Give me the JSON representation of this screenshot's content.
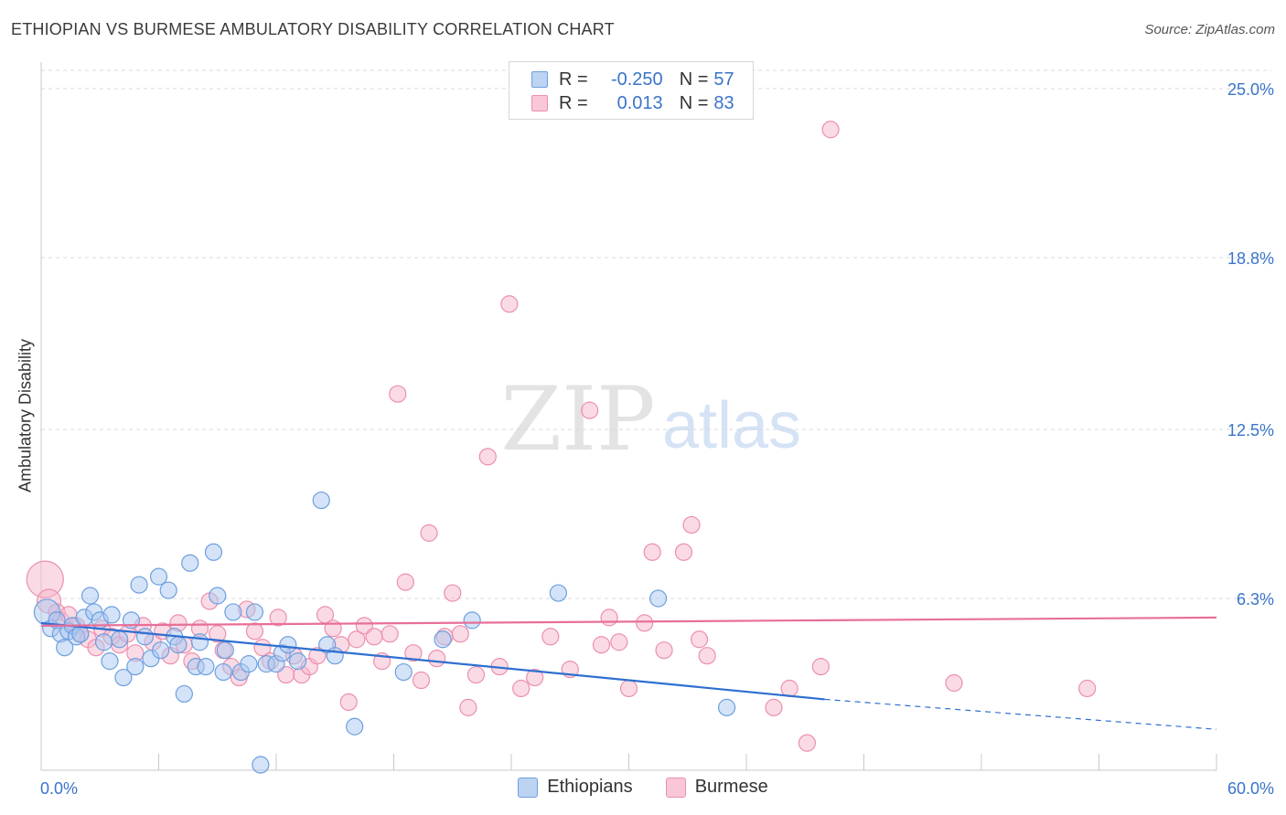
{
  "title": "ETHIOPIAN VS BURMESE AMBULATORY DISABILITY CORRELATION CHART",
  "source": "Source: ZipAtlas.com",
  "watermark": {
    "zip": "ZIP",
    "atlas": "atlas"
  },
  "colors": {
    "blue_fill": "#a9c8f0",
    "blue_stroke": "#6d9fe0",
    "blue_line": "#2e6fd1",
    "pink_fill": "#f6b8cc",
    "pink_stroke": "#ec8fae",
    "pink_line": "#e86f99",
    "grid": "#d8d8d8",
    "axis_text": "#3a74c9"
  },
  "legend": {
    "rows": [
      {
        "r_label": "R =",
        "r_value": "-0.250",
        "n_label": "N =",
        "n_value": "57"
      },
      {
        "r_label": "R =",
        "r_value": "0.013",
        "n_label": "N =",
        "n_value": "83"
      }
    ]
  },
  "chart_data": {
    "type": "scatter",
    "xlabel": "",
    "ylabel": "Ambulatory Disability",
    "xlim": [
      0,
      60
    ],
    "ylim": [
      0,
      25.0
    ],
    "x_tick_labels": [
      "0.0%",
      "60.0%"
    ],
    "y_tick_labels": [
      "6.3%",
      "12.5%",
      "18.8%",
      "25.0%"
    ],
    "y_ticks": [
      6.3,
      12.5,
      18.8,
      25.0
    ],
    "grid": true,
    "series": [
      {
        "name": "Ethiopians",
        "color": "blue",
        "trend": {
          "x0": 0,
          "y0": 5.4,
          "x1": 40,
          "y1": 2.6,
          "dashed_to_x": 60,
          "dashed_to_y": 1.5
        },
        "points": [
          [
            0.3,
            5.8
          ],
          [
            0.5,
            5.2
          ],
          [
            0.8,
            5.5
          ],
          [
            1.0,
            5.0
          ],
          [
            1.2,
            4.5
          ],
          [
            1.4,
            5.1
          ],
          [
            1.6,
            5.3
          ],
          [
            1.8,
            4.9
          ],
          [
            2.0,
            5.0
          ],
          [
            2.2,
            5.6
          ],
          [
            2.5,
            6.4
          ],
          [
            2.7,
            5.8
          ],
          [
            3.0,
            5.5
          ],
          [
            3.2,
            4.7
          ],
          [
            3.5,
            4.0
          ],
          [
            3.6,
            5.7
          ],
          [
            4.0,
            4.8
          ],
          [
            4.2,
            3.4
          ],
          [
            4.6,
            5.5
          ],
          [
            4.8,
            3.8
          ],
          [
            5.0,
            6.8
          ],
          [
            5.3,
            4.9
          ],
          [
            5.6,
            4.1
          ],
          [
            6.0,
            7.1
          ],
          [
            6.1,
            4.4
          ],
          [
            6.5,
            6.6
          ],
          [
            6.8,
            4.9
          ],
          [
            7.0,
            4.6
          ],
          [
            7.3,
            2.8
          ],
          [
            7.6,
            7.6
          ],
          [
            7.9,
            3.8
          ],
          [
            8.1,
            4.7
          ],
          [
            8.4,
            3.8
          ],
          [
            8.8,
            8.0
          ],
          [
            9.0,
            6.4
          ],
          [
            9.3,
            3.6
          ],
          [
            9.4,
            4.4
          ],
          [
            9.8,
            5.8
          ],
          [
            10.2,
            3.6
          ],
          [
            10.6,
            3.9
          ],
          [
            10.9,
            5.8
          ],
          [
            11.2,
            0.2
          ],
          [
            11.5,
            3.9
          ],
          [
            12.0,
            3.9
          ],
          [
            12.3,
            4.3
          ],
          [
            12.6,
            4.6
          ],
          [
            13.1,
            4.0
          ],
          [
            14.3,
            9.9
          ],
          [
            14.6,
            4.6
          ],
          [
            15.0,
            4.2
          ],
          [
            16.0,
            1.6
          ],
          [
            18.5,
            3.6
          ],
          [
            20.5,
            4.8
          ],
          [
            22.0,
            5.5
          ],
          [
            26.4,
            6.5
          ],
          [
            31.5,
            6.3
          ],
          [
            35.0,
            2.3
          ]
        ]
      },
      {
        "name": "Burmese",
        "color": "pink",
        "trend": {
          "x0": 0,
          "y0": 5.3,
          "x1": 60,
          "y1": 5.6
        },
        "points": [
          [
            0.2,
            7.0
          ],
          [
            0.4,
            6.2
          ],
          [
            0.8,
            5.8
          ],
          [
            1.0,
            5.5
          ],
          [
            1.4,
            5.7
          ],
          [
            1.8,
            5.3
          ],
          [
            2.0,
            5.0
          ],
          [
            2.4,
            4.8
          ],
          [
            2.8,
            4.5
          ],
          [
            3.1,
            5.2
          ],
          [
            3.6,
            4.9
          ],
          [
            4.0,
            4.6
          ],
          [
            4.4,
            5.0
          ],
          [
            4.8,
            4.3
          ],
          [
            5.2,
            5.3
          ],
          [
            5.7,
            4.7
          ],
          [
            6.2,
            5.1
          ],
          [
            6.6,
            4.2
          ],
          [
            7.0,
            5.4
          ],
          [
            7.3,
            4.6
          ],
          [
            7.7,
            4.0
          ],
          [
            8.1,
            5.2
          ],
          [
            8.6,
            6.2
          ],
          [
            9.0,
            5.0
          ],
          [
            9.3,
            4.4
          ],
          [
            9.7,
            3.8
          ],
          [
            10.1,
            3.4
          ],
          [
            10.5,
            5.9
          ],
          [
            10.9,
            5.1
          ],
          [
            11.3,
            4.5
          ],
          [
            11.7,
            4.0
          ],
          [
            12.1,
            5.6
          ],
          [
            12.5,
            3.5
          ],
          [
            12.9,
            4.2
          ],
          [
            13.3,
            3.5
          ],
          [
            13.7,
            3.8
          ],
          [
            14.1,
            4.2
          ],
          [
            14.5,
            5.7
          ],
          [
            14.9,
            5.2
          ],
          [
            15.3,
            4.6
          ],
          [
            15.7,
            2.5
          ],
          [
            16.1,
            4.8
          ],
          [
            16.5,
            5.3
          ],
          [
            17.0,
            4.9
          ],
          [
            17.4,
            4.0
          ],
          [
            17.8,
            5.0
          ],
          [
            18.2,
            13.8
          ],
          [
            18.6,
            6.9
          ],
          [
            19.0,
            4.3
          ],
          [
            19.4,
            3.3
          ],
          [
            19.8,
            8.7
          ],
          [
            20.2,
            4.1
          ],
          [
            20.6,
            4.9
          ],
          [
            21.0,
            6.5
          ],
          [
            21.4,
            5.0
          ],
          [
            21.8,
            2.3
          ],
          [
            22.2,
            3.5
          ],
          [
            22.8,
            11.5
          ],
          [
            23.4,
            3.8
          ],
          [
            23.9,
            17.1
          ],
          [
            24.5,
            3.0
          ],
          [
            25.2,
            3.4
          ],
          [
            26.0,
            4.9
          ],
          [
            27.0,
            3.7
          ],
          [
            28.0,
            13.2
          ],
          [
            28.6,
            4.6
          ],
          [
            29.0,
            5.6
          ],
          [
            29.5,
            4.7
          ],
          [
            30.0,
            3.0
          ],
          [
            30.8,
            5.4
          ],
          [
            31.2,
            8.0
          ],
          [
            31.8,
            4.4
          ],
          [
            32.8,
            8.0
          ],
          [
            33.2,
            9.0
          ],
          [
            33.6,
            4.8
          ],
          [
            34.0,
            4.2
          ],
          [
            37.4,
            2.3
          ],
          [
            38.2,
            3.0
          ],
          [
            39.1,
            1.0
          ],
          [
            39.8,
            3.8
          ],
          [
            40.3,
            23.5
          ],
          [
            46.6,
            3.2
          ],
          [
            53.4,
            3.0
          ]
        ]
      }
    ]
  },
  "bottom_legend": [
    {
      "label": "Ethiopians",
      "color": "blue"
    },
    {
      "label": "Burmese",
      "color": "pink"
    }
  ]
}
